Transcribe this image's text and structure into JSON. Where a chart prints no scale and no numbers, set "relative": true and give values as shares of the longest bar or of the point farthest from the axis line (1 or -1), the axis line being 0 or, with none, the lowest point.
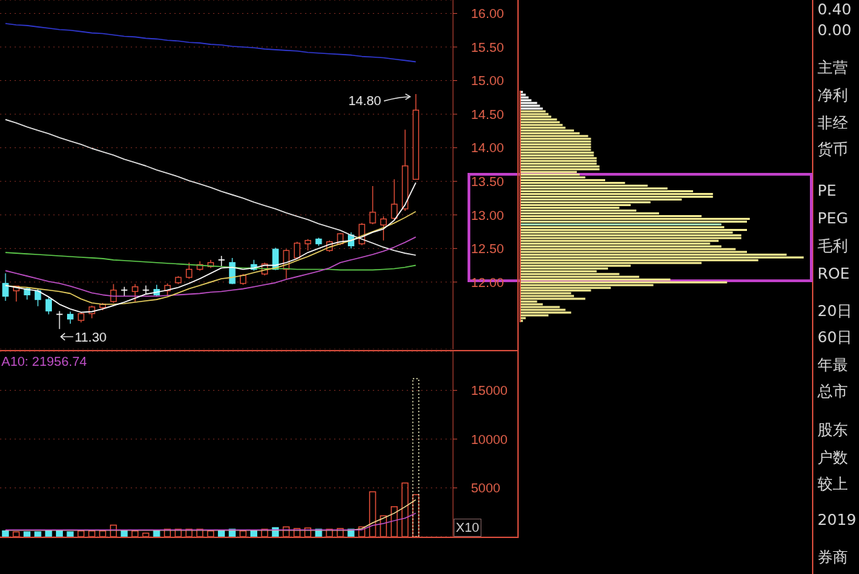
{
  "chart_data": [
    {
      "type": "candlestick",
      "categories": [
        null,
        null,
        null,
        null,
        null,
        null,
        null,
        null,
        null,
        null,
        null,
        null,
        null,
        null,
        null,
        null,
        null,
        null,
        null,
        null,
        null,
        null,
        null,
        null,
        null,
        null,
        null,
        null,
        null,
        null,
        null,
        null,
        null,
        null,
        null,
        null,
        null,
        null,
        null
      ],
      "ohlc": [
        [
          11.98,
          12.13,
          11.72,
          11.79
        ],
        [
          11.87,
          11.94,
          11.71,
          11.94
        ],
        [
          11.9,
          11.92,
          11.74,
          11.81
        ],
        [
          11.87,
          11.9,
          11.64,
          11.74
        ],
        [
          11.74,
          11.77,
          11.52,
          11.57
        ],
        [
          11.52,
          11.57,
          11.3,
          11.52
        ],
        [
          11.52,
          11.56,
          11.38,
          11.45
        ],
        [
          11.43,
          11.55,
          11.4,
          11.53
        ],
        [
          11.53,
          11.65,
          11.46,
          11.63
        ],
        [
          11.62,
          11.69,
          11.58,
          11.67
        ],
        [
          11.71,
          11.97,
          11.69,
          11.88
        ],
        [
          11.88,
          11.93,
          11.79,
          11.88
        ],
        [
          11.86,
          11.97,
          11.71,
          11.93
        ],
        [
          11.88,
          11.95,
          11.82,
          11.88
        ],
        [
          11.89,
          11.96,
          11.79,
          11.81
        ],
        [
          11.87,
          11.98,
          11.79,
          11.95
        ],
        [
          11.99,
          12.09,
          11.97,
          12.07
        ],
        [
          12.07,
          12.29,
          12.05,
          12.19
        ],
        [
          12.19,
          12.31,
          12.17,
          12.26
        ],
        [
          12.23,
          12.33,
          12.21,
          12.29
        ],
        [
          12.33,
          12.39,
          12.23,
          12.33
        ],
        [
          12.29,
          12.36,
          11.97,
          11.98
        ],
        [
          11.98,
          12.12,
          11.96,
          12.1
        ],
        [
          12.26,
          12.33,
          12.17,
          12.19
        ],
        [
          12.12,
          12.29,
          12.1,
          12.27
        ],
        [
          12.49,
          12.51,
          12.18,
          12.19
        ],
        [
          12.19,
          12.49,
          12.05,
          12.47
        ],
        [
          12.36,
          12.6,
          12.34,
          12.58
        ],
        [
          12.57,
          12.64,
          12.47,
          12.62
        ],
        [
          12.64,
          12.66,
          12.54,
          12.57
        ],
        [
          12.47,
          12.62,
          12.45,
          12.6
        ],
        [
          12.57,
          12.73,
          12.55,
          12.72
        ],
        [
          12.7,
          12.74,
          12.5,
          12.54
        ],
        [
          12.57,
          12.88,
          12.55,
          12.86
        ],
        [
          12.88,
          13.43,
          12.86,
          13.04
        ],
        [
          12.85,
          12.98,
          12.62,
          12.94
        ],
        [
          12.95,
          13.53,
          12.93,
          13.16
        ],
        [
          13.09,
          14.27,
          13.06,
          13.73
        ],
        [
          13.53,
          14.8,
          13.53,
          14.56
        ]
      ],
      "colors": [
        "#5ce6f0",
        "#e8503a",
        "#5ce6f0",
        "#5ce6f0",
        "#5ce6f0",
        "#ffffff",
        "#5ce6f0",
        "#e8503a",
        "#e8503a",
        "#e8503a",
        "#e8503a",
        "#ffffff",
        "#e8503a",
        "#ffffff",
        "#5ce6f0",
        "#e8503a",
        "#e8503a",
        "#e8503a",
        "#e8503a",
        "#e8503a",
        "#ffffff",
        "#5ce6f0",
        "#e8503a",
        "#5ce6f0",
        "#e8503a",
        "#5ce6f0",
        "#e8503a",
        "#e8503a",
        "#e8503a",
        "#5ce6f0",
        "#e8503a",
        "#e8503a",
        "#5ce6f0",
        "#e8503a",
        "#e8503a",
        "#e8503a",
        "#e8503a",
        "#e8503a",
        "#e8503a"
      ],
      "series": [
        {
          "type": "line",
          "color": "#3038d0",
          "values": [
            15.85,
            15.83,
            15.82,
            15.8,
            15.78,
            15.76,
            15.75,
            15.73,
            15.71,
            15.7,
            15.68,
            15.66,
            15.65,
            15.63,
            15.62,
            15.6,
            15.59,
            15.57,
            15.56,
            15.54,
            15.53,
            15.51,
            15.5,
            15.49,
            15.47,
            15.46,
            15.45,
            15.44,
            15.42,
            15.41,
            15.4,
            15.39,
            15.38,
            15.36,
            15.35,
            15.34,
            15.32,
            15.3,
            15.28
          ]
        },
        {
          "type": "line",
          "color": "#e8e8e8",
          "values": [
            14.42,
            14.37,
            14.31,
            14.26,
            14.21,
            14.15,
            14.1,
            14.05,
            13.99,
            13.94,
            13.89,
            13.83,
            13.78,
            13.73,
            13.67,
            13.62,
            13.57,
            13.51,
            13.46,
            13.41,
            13.35,
            13.3,
            13.25,
            13.19,
            13.14,
            13.09,
            13.03,
            12.98,
            12.93,
            12.87,
            12.82,
            12.77,
            12.7,
            12.64,
            12.58,
            12.52,
            12.47,
            12.43,
            12.4
          ]
        },
        {
          "type": "line",
          "color": "#5cc84a",
          "values": [
            12.44,
            12.43,
            12.42,
            12.41,
            12.4,
            12.39,
            12.38,
            12.37,
            12.36,
            12.35,
            12.33,
            12.32,
            12.31,
            12.3,
            12.29,
            12.28,
            12.27,
            12.26,
            12.25,
            12.24,
            12.23,
            12.22,
            12.21,
            12.21,
            12.2,
            12.2,
            12.2,
            12.19,
            12.19,
            12.19,
            12.19,
            12.18,
            12.18,
            12.18,
            12.18,
            12.19,
            12.2,
            12.22,
            12.25
          ]
        },
        {
          "type": "line",
          "color": "#c050c8",
          "values": [
            12.17,
            12.13,
            12.09,
            12.05,
            12.01,
            11.98,
            11.94,
            11.89,
            11.84,
            11.81,
            11.79,
            11.79,
            11.79,
            11.79,
            11.79,
            11.8,
            11.81,
            11.82,
            11.83,
            11.85,
            11.86,
            11.88,
            11.9,
            11.93,
            11.96,
            11.99,
            12.04,
            12.08,
            12.12,
            12.16,
            12.21,
            12.29,
            12.33,
            12.37,
            12.41,
            12.46,
            12.52,
            12.59,
            12.67
          ]
        },
        {
          "type": "line",
          "color": "#e8d060",
          "values": [
            11.95,
            11.93,
            11.92,
            11.9,
            11.88,
            11.86,
            11.83,
            11.75,
            11.69,
            11.67,
            11.67,
            11.68,
            11.7,
            11.72,
            11.74,
            11.78,
            11.84,
            11.9,
            11.95,
            12.0,
            12.05,
            12.07,
            12.1,
            12.14,
            12.18,
            12.21,
            12.26,
            12.32,
            12.38,
            12.45,
            12.52,
            12.57,
            12.62,
            12.69,
            12.75,
            12.81,
            12.88,
            12.96,
            13.05
          ]
        },
        {
          "type": "line",
          "color": "#ffffff",
          "values": [
            11.95,
            11.92,
            11.89,
            11.87,
            11.78,
            11.67,
            11.6,
            11.55,
            11.56,
            11.6,
            11.65,
            11.7,
            11.76,
            11.82,
            11.85,
            11.88,
            11.92,
            11.98,
            12.05,
            12.13,
            12.21,
            12.22,
            12.19,
            12.21,
            12.25,
            12.25,
            12.29,
            12.35,
            12.44,
            12.5,
            12.56,
            12.6,
            12.62,
            12.67,
            12.74,
            12.79,
            12.92,
            13.15,
            13.48
          ]
        }
      ],
      "ylim": [
        11.0,
        16.2
      ],
      "yticks": [
        {
          "value": 12,
          "label": "12.00"
        },
        {
          "value": 12.5,
          "label": "12.50"
        },
        {
          "value": 13,
          "label": "13.00"
        },
        {
          "value": 13.5,
          "label": "13.50"
        },
        {
          "value": 14,
          "label": "14.00"
        },
        {
          "value": 14.5,
          "label": "14.50"
        },
        {
          "value": 15,
          "label": "15.00"
        },
        {
          "value": 15.5,
          "label": "15.50"
        },
        {
          "value": 16,
          "label": "16.00"
        }
      ],
      "grid": "y",
      "tick_labels": "y",
      "annotations": [
        "14.80",
        "11.30"
      ]
    },
    {
      "type": "bar",
      "categories": [
        null,
        null,
        null,
        null,
        null,
        null,
        null,
        null,
        null,
        null,
        null,
        null,
        null,
        null,
        null,
        null,
        null,
        null,
        null,
        null,
        null,
        null,
        null,
        null,
        null,
        null,
        null,
        null,
        null,
        null,
        null,
        null,
        null,
        null,
        null,
        null,
        null,
        null,
        null
      ],
      "series": [
        {
          "type": "bar",
          "colors": [
            "#5ce6f0",
            "#e8503a",
            "#5ce6f0",
            "#5ce6f0",
            "#5ce6f0",
            "#5ce6f0",
            "#5ce6f0",
            "#e8503a",
            "#e8503a",
            "#e8503a",
            "#e8503a",
            "#5ce6f0",
            "#e8503a",
            "#e8503a",
            "#5ce6f0",
            "#e8503a",
            "#e8503a",
            "#e8503a",
            "#e8503a",
            "#e8503a",
            "#5ce6f0",
            "#5ce6f0",
            "#e8503a",
            "#5ce6f0",
            "#e8503a",
            "#5ce6f0",
            "#e8503a",
            "#e8503a",
            "#e8503a",
            "#5ce6f0",
            "#e8503a",
            "#e8503a",
            "#5ce6f0",
            "#e8503a",
            "#e8503a",
            "#e8503a",
            "#e8503a",
            "#e8503a",
            "#e8503a"
          ],
          "values": [
            590,
            490,
            490,
            490,
            660,
            660,
            490,
            590,
            590,
            590,
            1180,
            590,
            590,
            360,
            590,
            760,
            760,
            760,
            760,
            590,
            590,
            760,
            590,
            590,
            760,
            920,
            1000,
            830,
            890,
            760,
            760,
            830,
            760,
            1000,
            4600,
            2140,
            3070,
            5500,
            4300
          ]
        },
        {
          "type": "bar",
          "color": "#f0f0c0",
          "line_style": "dotted",
          "values": [
            null,
            null,
            null,
            null,
            null,
            null,
            null,
            null,
            null,
            null,
            null,
            null,
            null,
            null,
            null,
            null,
            null,
            null,
            null,
            null,
            null,
            null,
            null,
            null,
            null,
            null,
            null,
            null,
            null,
            null,
            null,
            null,
            null,
            null,
            null,
            null,
            null,
            null,
            16200
          ]
        },
        {
          "type": "line",
          "color": "#f0d890",
          "values": [
            650,
            650,
            650,
            650,
            650,
            650,
            650,
            650,
            650,
            650,
            650,
            650,
            650,
            650,
            650,
            650,
            650,
            650,
            650,
            650,
            650,
            650,
            650,
            650,
            650,
            650,
            650,
            650,
            650,
            650,
            650,
            650,
            650,
            820,
            1420,
            1900,
            2400,
            3060,
            3780
          ]
        },
        {
          "type": "line",
          "color": "#c050c8",
          "values": [
            700,
            700,
            700,
            700,
            700,
            700,
            700,
            700,
            700,
            700,
            700,
            700,
            700,
            700,
            700,
            700,
            700,
            700,
            700,
            700,
            700,
            700,
            700,
            700,
            700,
            700,
            700,
            700,
            700,
            700,
            700,
            700,
            700,
            700,
            1150,
            1350,
            1640,
            1900,
            2400
          ]
        }
      ],
      "ylim": [
        0,
        19000
      ],
      "yticks": [
        5000,
        10000,
        15000
      ],
      "grid": "y",
      "tick_labels": "y",
      "annotations": [
        "A10: 21956.74",
        "X10"
      ]
    },
    {
      "type": "bar",
      "orientation": "horizontal",
      "relative": true,
      "tick_labels": false,
      "categories": [
        null,
        null,
        null,
        null,
        null,
        null,
        null,
        null,
        null,
        null,
        null,
        null,
        null,
        null,
        null,
        null,
        null,
        null,
        null,
        null,
        null,
        null,
        null,
        null,
        null,
        null,
        null,
        null,
        null,
        null,
        null,
        null,
        null,
        null,
        null,
        null,
        null,
        null,
        null,
        null,
        null,
        null,
        null,
        null,
        null,
        null,
        null,
        null,
        null,
        null,
        null,
        null,
        null,
        null,
        null,
        null,
        null,
        null,
        null,
        null,
        null,
        null,
        null,
        null,
        null,
        null,
        null,
        null,
        null,
        null,
        null,
        null,
        null,
        null,
        null,
        null,
        null,
        null,
        null,
        null,
        null,
        null,
        null,
        null
      ],
      "values": [
        0.01,
        0.02,
        0.03,
        0.04,
        0.06,
        0.07,
        0.08,
        0.09,
        0.1,
        0.11,
        0.13,
        0.14,
        0.15,
        0.16,
        0.19,
        0.21,
        0.24,
        0.25,
        0.25,
        0.25,
        0.25,
        0.25,
        0.26,
        0.26,
        0.27,
        0.27,
        0.27,
        0.28,
        0.28,
        0.2,
        0.21,
        0.23,
        0.3,
        0.37,
        0.45,
        0.52,
        0.61,
        0.68,
        0.68,
        0.57,
        0.46,
        0.39,
        0.35,
        0.41,
        0.49,
        0.64,
        0.81,
        0.8,
        0.71,
        0.72,
        0.8,
        0.75,
        0.78,
        0.78,
        0.7,
        0.67,
        0.71,
        0.76,
        0.8,
        0.94,
        1,
        0.84,
        0.64,
        0.39,
        0.31,
        0.27,
        0.35,
        0.42,
        0.53,
        0.73,
        0.47,
        0.32,
        0.25,
        0.18,
        0.19,
        0.23,
        0.06,
        0.08,
        0.14,
        0.16,
        0.18,
        0.1,
        0.02,
        0.01
      ],
      "colors": [
        "#ffffff",
        "#ffffff",
        "#ffffff",
        "#ffffff",
        "#ffffff",
        "#ffffff",
        "#ffffff",
        "#f0e890",
        "#f0e890",
        "#f0e890",
        "#f0e890",
        "#f0e890",
        "#f0e890",
        "#f0e890",
        "#f0e890",
        "#f0e890",
        "#f0e890",
        "#f0e890",
        "#f0e890",
        "#f0e890",
        "#f0e890",
        "#f0e890",
        "#f0e890",
        "#f0e890",
        "#f0e890",
        "#f0e890",
        "#f0e890",
        "#f0e890",
        "#f0e890",
        "#f0e890",
        "#f0e890",
        "#f0e890",
        "#f0e890",
        "#f0e890",
        "#f0e890",
        "#f0e890",
        "#f0e890",
        "#f0e890",
        "#f0e890",
        "#f0e890",
        "#f0e890",
        "#f0e890",
        "#f0e890",
        "#f0e890",
        "#f0e890",
        "#f0e890",
        "#f0e890",
        "#f0e890",
        "#a0e0b0",
        "#f0e890",
        "#f0e890",
        "#f0e890",
        "#f0e890",
        "#f0e890",
        "#f0e890",
        "#f0e890",
        "#f0e890",
        "#f0e890",
        "#f0e890",
        "#f0e890",
        "#f0e890",
        "#f0e890",
        "#f0e890",
        "#f0e890",
        "#f0e890",
        "#f0e890",
        "#f0e890",
        "#f0e890",
        "#f0e890",
        "#f0e890",
        "#f0e890",
        "#f0e890",
        "#f0e890",
        "#f0e890",
        "#f0e890",
        "#f0e890",
        "#f0e890",
        "#f0e890",
        "#f0e890",
        "#f0e890",
        "#f0e890",
        "#f0e890",
        "#f0e890",
        "#f0e890"
      ]
    },
    {
      "type": "other",
      "annotations": [
        "0.40",
        "0.00",
        "主营",
        "净利",
        "非经",
        "货币",
        "PE",
        "PEG",
        "毛利",
        "ROE",
        "20日",
        "60日",
        "年最",
        "总市",
        "股东",
        "户数",
        "较上",
        "2019",
        "券商"
      ]
    }
  ]
}
